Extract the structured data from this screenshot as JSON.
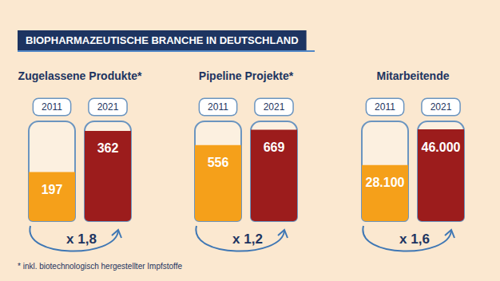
{
  "title": "BIOPHARMAZEUTISCHE BRANCHE IN DEUTSCHLAND",
  "footnote": "* inkl. biotechnologisch hergestellter Impfstoffe",
  "chart_data": [
    {
      "type": "bar",
      "title": "Zugelassene Produkte*",
      "categories": [
        "2011",
        "2021"
      ],
      "values": [
        197,
        362
      ],
      "colors": [
        "#f5a01a",
        "#9c1c1c"
      ],
      "ylim": [
        0,
        400
      ],
      "grid": false,
      "tick_labels": "x",
      "data_labels": true,
      "annotation": "x 1,8"
    },
    {
      "type": "bar",
      "title": "Pipeline Projekte*",
      "categories": [
        "2011",
        "2021"
      ],
      "values": [
        556,
        669
      ],
      "colors": [
        "#f5a01a",
        "#9c1c1c"
      ],
      "ylim": [
        0,
        730
      ],
      "grid": false,
      "tick_labels": "x",
      "data_labels": true,
      "annotation": "x 1,2"
    },
    {
      "type": "bar",
      "title": "Mitarbeitende",
      "categories": [
        "2011",
        "2021"
      ],
      "values": [
        28100,
        46000
      ],
      "value_labels": [
        "28.100",
        "46.000"
      ],
      "colors": [
        "#f5a01a",
        "#9c1c1c"
      ],
      "ylim": [
        0,
        50000
      ],
      "grid": false,
      "tick_labels": "x",
      "data_labels": true,
      "annotation": "x 1,6"
    }
  ]
}
